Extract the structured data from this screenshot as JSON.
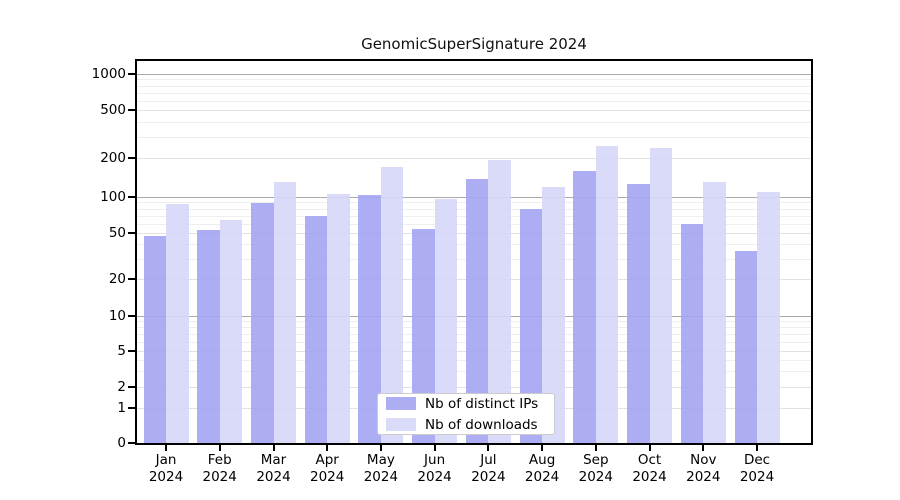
{
  "chart_data": {
    "type": "bar",
    "title": "GenomicSuperSignature 2024",
    "year": "2024",
    "categories": [
      "Jan",
      "Feb",
      "Mar",
      "Apr",
      "May",
      "Jun",
      "Jul",
      "Aug",
      "Sep",
      "Oct",
      "Nov",
      "Dec"
    ],
    "series": [
      {
        "key": "distinct-ips",
        "name": "Nb of distinct IPs",
        "color": "#a4a4f3",
        "values": [
          47,
          53,
          90,
          70,
          104,
          54,
          137,
          80,
          158,
          126,
          60,
          35
        ]
      },
      {
        "key": "downloads",
        "name": "Nb of downloads",
        "color": "#d6d6f8",
        "values": [
          88,
          64,
          130,
          106,
          172,
          97,
          192,
          120,
          254,
          242,
          131,
          110
        ]
      }
    ],
    "y_ticks": [
      0,
      1,
      2,
      5,
      10,
      20,
      50,
      100,
      200,
      500,
      1000
    ],
    "ylim": [
      0,
      1000
    ],
    "y_scale": "log-like (0,1,2,5,10,20,50,100,200,500,1000)",
    "xlabel": "",
    "ylabel": "",
    "grid": "horizontal major and minor gridlines",
    "legend_position": "lower center inside plot",
    "colors": {
      "background": "#ffffff",
      "axis": "#000000",
      "grid_major": "#a9a9a9",
      "grid_minor": "#eeeeee"
    }
  }
}
